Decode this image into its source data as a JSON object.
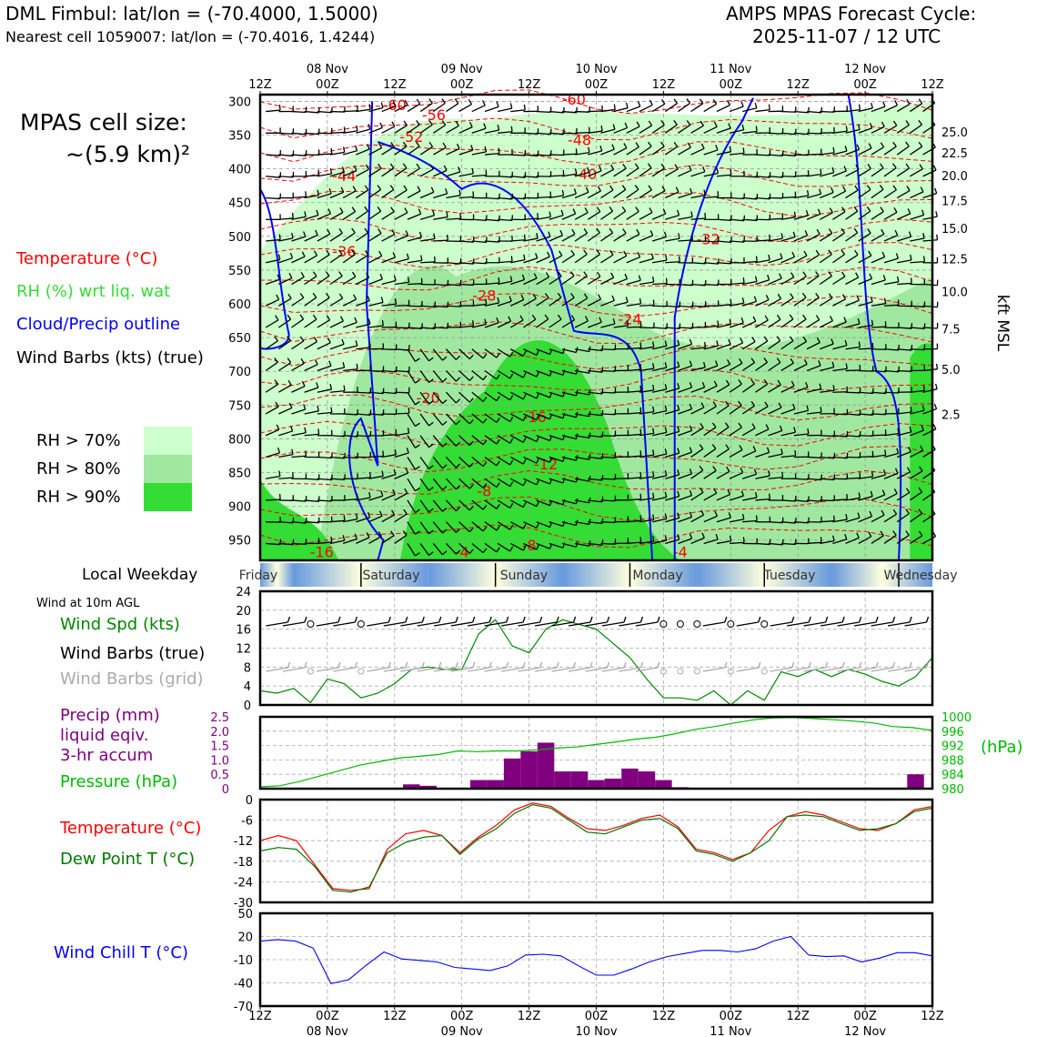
{
  "header": {
    "station_title": "DML Fimbul: lat/lon = (-70.4000, 1.5000)",
    "nearest_cell": "Nearest cell 1059007: lat/lon = (-70.4016, 1.4244)",
    "forecast_title": "AMPS MPAS Forecast Cycle:",
    "forecast_cycle": "2025-11-07 / 12 UTC"
  },
  "colors": {
    "temperature": "#ff0000",
    "rh": "#33dd33",
    "cloud": "#0000ff",
    "wind_speed": "#008800",
    "precip": "#800080",
    "pressure": "#00bb00",
    "dewpoint": "#007700",
    "windchill": "#0000ff",
    "barb_grid": "#aaaaaa"
  },
  "left_panel": {
    "cell_size_line1": "MPAS cell size:",
    "cell_size_line2": "~(5.9 km)²",
    "legend_temperature": "Temperature (°C)",
    "legend_rh": "RH (%) wrt liq. wat",
    "legend_cloud": "Cloud/Precip outline",
    "legend_wind": "Wind Barbs (kts) (true)",
    "rh70": "RH > 70%",
    "rh80": "RH > 80%",
    "rh90": "RH > 90%",
    "local_weekday": "Local Weekday",
    "wind_10m": "Wind at 10m AGL",
    "wind_spd": "Wind Spd (kts)",
    "barbs_true": "Wind Barbs (true)",
    "barbs_grid": "Wind Barbs (grid)",
    "precip_line1": "Precip (mm)",
    "precip_line2": "liquid eqiv.",
    "precip_line3": "3-hr accum",
    "pressure": "Pressure (hPa)",
    "temp": "Temperature (°C)",
    "dew": "Dew Point T (°C)",
    "windchill": "Wind Chill T (°C)"
  },
  "time_axis": {
    "hour_labels": [
      "12Z",
      "00Z",
      "12Z",
      "00Z",
      "12Z",
      "00Z",
      "12Z",
      "00Z",
      "12Z",
      "00Z",
      "12Z"
    ],
    "date_labels": [
      "08 Nov",
      "09 Nov",
      "10 Nov",
      "11 Nov",
      "12 Nov"
    ],
    "weekdays": [
      "Friday",
      "Saturday",
      "Sunday",
      "Monday",
      "Tuesday",
      "Wednesday"
    ]
  },
  "chart_data": [
    {
      "type": "heatmap",
      "name": "vertical-profile",
      "y_axis_left": {
        "label": "",
        "ticks": [
          300,
          350,
          400,
          450,
          500,
          550,
          600,
          650,
          700,
          750,
          800,
          850,
          900,
          950
        ],
        "ylim": [
          980,
          290
        ]
      },
      "y_axis_right": {
        "label": "kft MSL",
        "ticks": [
          "25.0",
          "22.5",
          "20.0",
          "17.5",
          "15.0",
          "12.5",
          "10.0",
          "7.5",
          "5.0",
          "2.5"
        ],
        "tick_pressures": [
          345,
          376,
          410,
          447,
          488,
          533,
          582,
          637,
          697,
          764
        ]
      },
      "temperature_contour_labels": [
        {
          "label": "-60",
          "t_hours": 24,
          "p": 313
        },
        {
          "label": "-56",
          "t_hours": 31,
          "p": 328
        },
        {
          "label": "-52",
          "t_hours": 27,
          "p": 360
        },
        {
          "label": "-60",
          "t_hours": 56,
          "p": 305
        },
        {
          "label": "-48",
          "t_hours": 57,
          "p": 365
        },
        {
          "label": "-44",
          "t_hours": 15,
          "p": 418
        },
        {
          "label": "-40",
          "t_hours": 58,
          "p": 415
        },
        {
          "label": "-36",
          "t_hours": 15,
          "p": 530
        },
        {
          "label": "-32",
          "t_hours": 80,
          "p": 512
        },
        {
          "label": "-28",
          "t_hours": 40,
          "p": 595
        },
        {
          "label": "-24",
          "t_hours": 66,
          "p": 630
        },
        {
          "label": "-20",
          "t_hours": 30,
          "p": 747
        },
        {
          "label": "-16",
          "t_hours": 49,
          "p": 775
        },
        {
          "label": "-12",
          "t_hours": 51,
          "p": 845
        },
        {
          "label": "-8",
          "t_hours": 40,
          "p": 885
        },
        {
          "label": "-8",
          "t_hours": 48,
          "p": 965
        },
        {
          "label": "-4",
          "t_hours": 36,
          "p": 975
        },
        {
          "label": "-16",
          "t_hours": 11,
          "p": 975
        },
        {
          "label": "-4",
          "t_hours": 75,
          "p": 975
        }
      ],
      "rh_levels": [
        "RH > 70%",
        "RH > 80%",
        "RH > 90%"
      ]
    },
    {
      "type": "line",
      "name": "wind-speed",
      "ylim": [
        0,
        24
      ],
      "yticks": [
        0,
        4,
        8,
        12,
        16,
        20,
        24
      ],
      "x_hours": [
        0,
        3,
        6,
        9,
        12,
        15,
        18,
        21,
        24,
        27,
        30,
        33,
        36,
        39,
        42,
        45,
        48,
        51,
        54,
        57,
        60,
        63,
        66,
        69,
        72,
        75,
        78,
        81,
        84,
        87,
        90,
        93,
        96,
        99,
        102,
        105,
        108,
        111,
        114,
        117,
        120
      ],
      "values": [
        3,
        2.5,
        3.5,
        0.5,
        5.5,
        4.5,
        1.5,
        2.5,
        4.5,
        7.5,
        8,
        7.5,
        7.5,
        15,
        18,
        12.5,
        11,
        16,
        18,
        17,
        16,
        13,
        10,
        5.5,
        1.5,
        1.5,
        1,
        3,
        0,
        3,
        1,
        7,
        6,
        7.5,
        6,
        7.5,
        6.5,
        5,
        4,
        6,
        10
      ]
    },
    {
      "type": "bar",
      "name": "precip-pressure",
      "precip_ylim": [
        0,
        2.5
      ],
      "precip_yticks": [
        "0",
        "0.5",
        "1.0",
        "1.5",
        "2.0",
        "2.5"
      ],
      "pressure_ylim": [
        980,
        1000
      ],
      "pressure_yticks": [
        "980",
        "984",
        "988",
        "992",
        "996",
        "1000"
      ],
      "pressure_unit": "(hPa)",
      "precip_bars": [
        {
          "t_hours": 27,
          "value": 0.15
        },
        {
          "t_hours": 30,
          "value": 0.1
        },
        {
          "t_hours": 39,
          "value": 0.3
        },
        {
          "t_hours": 42,
          "value": 0.3
        },
        {
          "t_hours": 45,
          "value": 1.05
        },
        {
          "t_hours": 48,
          "value": 1.3
        },
        {
          "t_hours": 51,
          "value": 1.6
        },
        {
          "t_hours": 54,
          "value": 0.6
        },
        {
          "t_hours": 57,
          "value": 0.6
        },
        {
          "t_hours": 60,
          "value": 0.3
        },
        {
          "t_hours": 63,
          "value": 0.35
        },
        {
          "t_hours": 66,
          "value": 0.7
        },
        {
          "t_hours": 69,
          "value": 0.6
        },
        {
          "t_hours": 72,
          "value": 0.3
        },
        {
          "t_hours": 75,
          "value": 0.05
        },
        {
          "t_hours": 117,
          "value": 0.5
        }
      ],
      "pressure_values": [
        980.5,
        980.8,
        982,
        983.5,
        985,
        986.5,
        987.5,
        988.5,
        989,
        989.5,
        990.5,
        990.3,
        990.5,
        990.5,
        990.8,
        991.3,
        991.6,
        992.3,
        993,
        993.8,
        994.3,
        995.3,
        996.5,
        997.3,
        998.3,
        999.2,
        999.7,
        999.8,
        999.5,
        999.2,
        998.8,
        998.3,
        997.3,
        997,
        996.2
      ]
    },
    {
      "type": "line",
      "name": "temperature-dewpoint",
      "ylim": [
        -30,
        0
      ],
      "yticks": [
        "0",
        "-6",
        "-12",
        "-18",
        "-24",
        "-30"
      ],
      "temperature": [
        -12,
        -10.5,
        -12,
        -19,
        -26,
        -26.5,
        -26,
        -14.5,
        -10,
        -9,
        -10.5,
        -15.5,
        -11,
        -7.5,
        -3,
        -1,
        -2,
        -5.5,
        -8.5,
        -9,
        -7.5,
        -5.5,
        -4.5,
        -8,
        -14.5,
        -15.5,
        -17.5,
        -15.5,
        -9,
        -5,
        -3.5,
        -4.5,
        -6.5,
        -8.5,
        -9,
        -7,
        -3,
        -2
      ],
      "dewpoint": [
        -15,
        -14,
        -14.5,
        -19.5,
        -26.5,
        -27,
        -25.5,
        -15.5,
        -12.5,
        -11,
        -10.5,
        -16,
        -11.5,
        -8.5,
        -4,
        -1.5,
        -2.5,
        -6,
        -9.5,
        -10,
        -8,
        -6,
        -5.5,
        -8.5,
        -15,
        -16,
        -18,
        -15.5,
        -12,
        -5,
        -4.5,
        -5,
        -7,
        -9,
        -8.5,
        -7,
        -3.5,
        -2.5
      ]
    },
    {
      "type": "line",
      "name": "wind-chill",
      "ylim": [
        -70,
        50
      ],
      "yticks": [
        "50",
        "20",
        "-10",
        "-40",
        "-70"
      ],
      "values": [
        14,
        16,
        14,
        5,
        -41,
        -36,
        -17,
        0,
        -9,
        -11,
        -13,
        -20,
        -22,
        -24,
        -18,
        -4,
        -3,
        -5,
        -18,
        -30,
        -30,
        -22,
        -13,
        -6,
        -2,
        2,
        2,
        0,
        4,
        14,
        20,
        -4,
        -6,
        -5,
        -13,
        -8,
        -1,
        -1,
        -5
      ]
    }
  ]
}
